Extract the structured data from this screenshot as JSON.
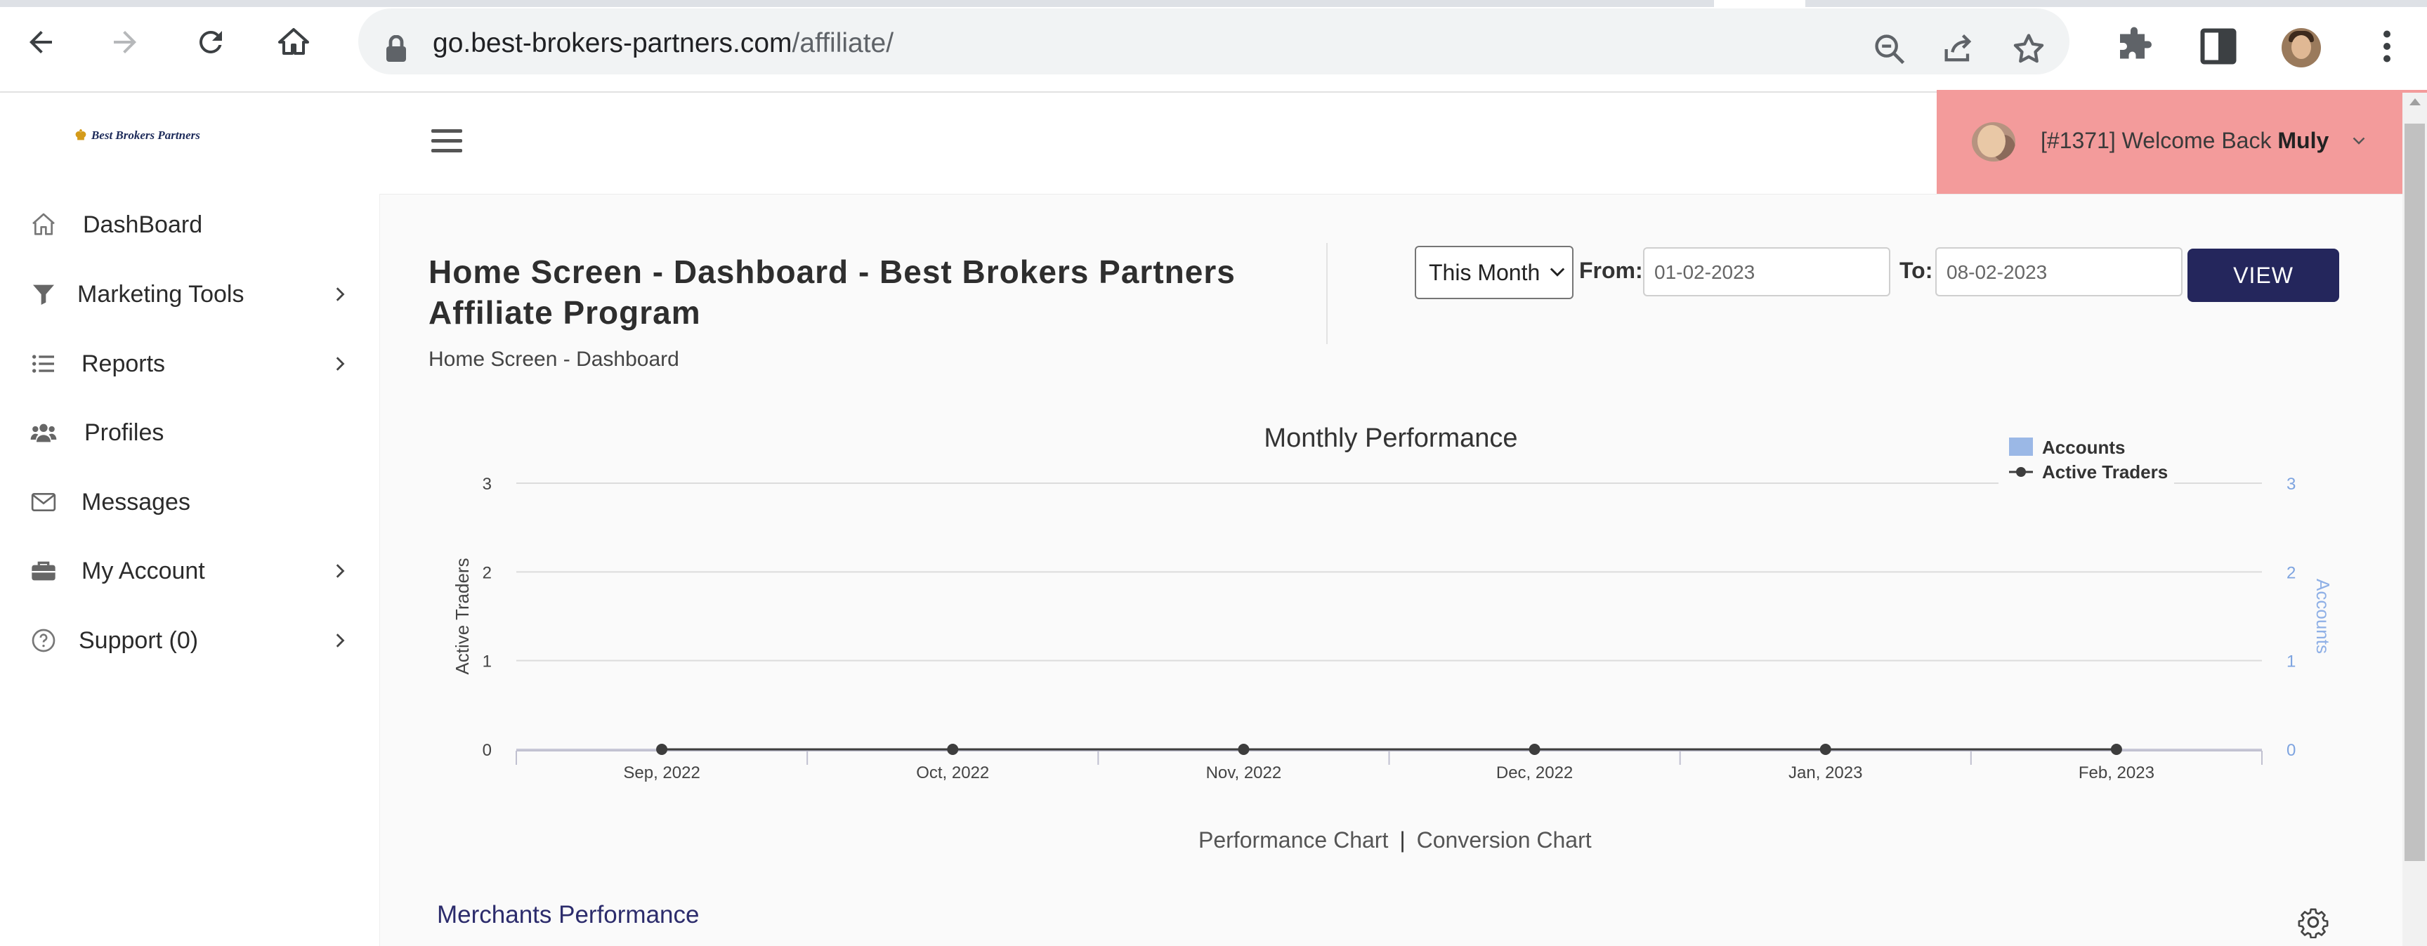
{
  "browser": {
    "url_domain": "go.best-brokers-partners.com",
    "url_path": "/affiliate/"
  },
  "header": {
    "logo_text": "Best Brokers Partners",
    "welcome_prefix": "[#1371] Welcome Back",
    "welcome_name": "Muly"
  },
  "sidebar": {
    "items": [
      {
        "label": "DashBoard",
        "icon": "home-icon"
      },
      {
        "label": "Marketing Tools",
        "icon": "filter-icon"
      },
      {
        "label": "Reports",
        "icon": "list-icon"
      },
      {
        "label": "Profiles",
        "icon": "users-icon"
      },
      {
        "label": "Messages",
        "icon": "envelope-icon"
      },
      {
        "label": "My Account",
        "icon": "briefcase-icon"
      },
      {
        "label": "Support (0)",
        "icon": "question-circle-icon"
      }
    ]
  },
  "main": {
    "title": "Home Screen - Dashboard - Best Brokers Partners Affiliate Program",
    "breadcrumb": "Home Screen - Dashboard",
    "period_select": "This Month",
    "from_label": "From:",
    "from_value": "01-02-2023",
    "to_label": "To:",
    "to_value": "08-02-2023",
    "view_button": "VIEW",
    "chart_links": {
      "performance": "Performance Chart",
      "separator": "|",
      "conversion": "Conversion Chart"
    },
    "merchants_heading": "Merchants Performance"
  },
  "colors": {
    "accent": "#24265c",
    "welcome_bg": "#f39b9b",
    "accounts_series": "#9bb8e6",
    "traders_series": "#3d3d3d"
  },
  "chart_data": {
    "type": "line",
    "title": "Monthly Performance",
    "categories": [
      "Sep, 2022",
      "Oct, 2022",
      "Nov, 2022",
      "Dec, 2022",
      "Jan, 2023",
      "Feb, 2023"
    ],
    "ylabel": "Active Traders",
    "y2label": "Accounts",
    "ylim": [
      0,
      3
    ],
    "y2lim": [
      0,
      3
    ],
    "yticks": [
      "0",
      "1",
      "2",
      "3"
    ],
    "y2ticks": [
      "0",
      "1",
      "2",
      "3"
    ],
    "legend_position": "top-right",
    "grid": true,
    "series": [
      {
        "name": "Accounts",
        "type": "bar",
        "axis": "right",
        "values": [
          0,
          0,
          0,
          0,
          0,
          0
        ]
      },
      {
        "name": "Active Traders",
        "type": "line",
        "axis": "left",
        "values": [
          0,
          0,
          0,
          0,
          0,
          0
        ]
      }
    ]
  }
}
